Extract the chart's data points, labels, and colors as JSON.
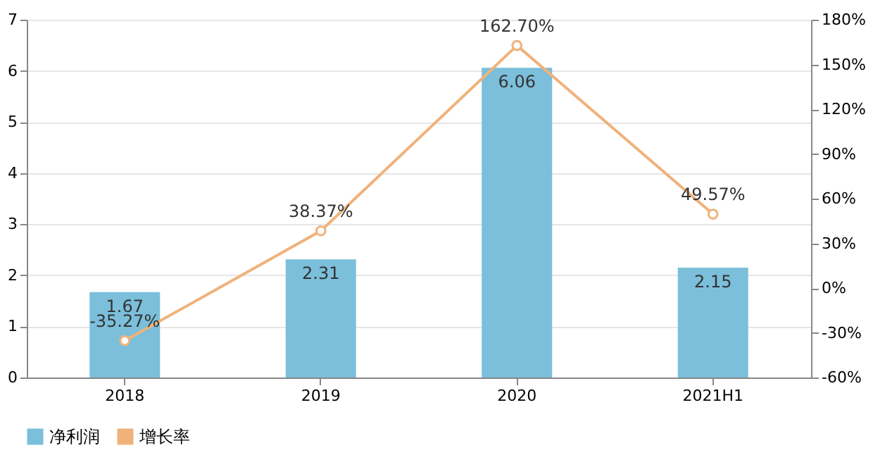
{
  "chart_data": {
    "type": "bar",
    "categories": [
      "2018",
      "2019",
      "2020",
      "2021H1"
    ],
    "series": [
      {
        "name": "净利润",
        "color": "#7bbfdb",
        "values": [
          1.67,
          2.31,
          6.06,
          2.15
        ],
        "value_labels": [
          "1.67",
          "2.31",
          "6.06",
          "2.15"
        ]
      },
      {
        "name": "增长率",
        "type": "line",
        "axis": "y2",
        "color": "#f0b27a",
        "marker": "circle",
        "values": [
          -35.27,
          38.37,
          162.7,
          49.57
        ],
        "value_labels": [
          "-35.27%",
          "38.37%",
          "162.70%",
          "49.57%"
        ]
      }
    ],
    "ylim": [
      0,
      7
    ],
    "yticks": [
      0,
      1,
      2,
      3,
      4,
      5,
      6,
      7
    ],
    "y2lim": [
      -60,
      180
    ],
    "y2ticks": [
      {
        "value": -60,
        "label": "-60%"
      },
      {
        "value": -30,
        "label": "-30%"
      },
      {
        "value": 0,
        "label": "0%"
      },
      {
        "value": 30,
        "label": "30%"
      },
      {
        "value": 60,
        "label": "60%"
      },
      {
        "value": 90,
        "label": "90%"
      },
      {
        "value": 120,
        "label": "120%"
      },
      {
        "value": 150,
        "label": "150%"
      },
      {
        "value": 180,
        "label": "180%"
      }
    ],
    "grid": "y",
    "legend": "bottom"
  }
}
